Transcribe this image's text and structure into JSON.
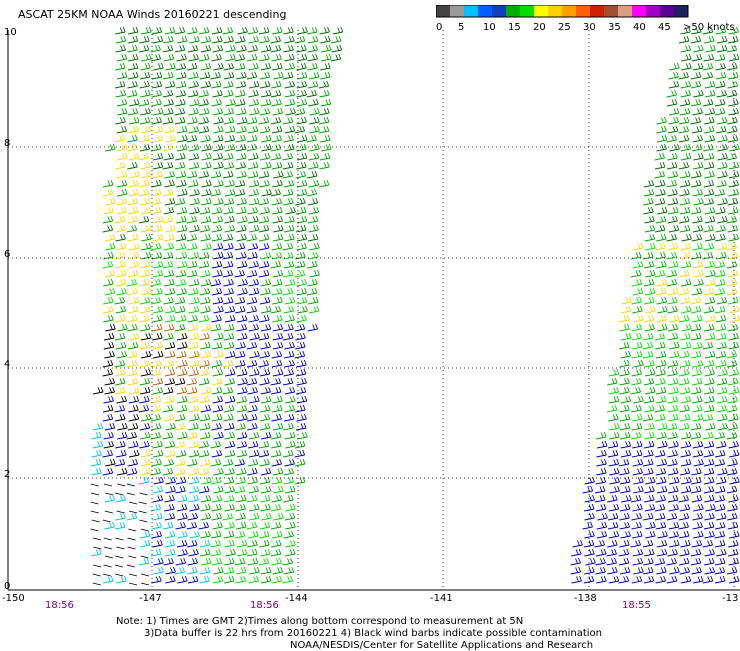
{
  "title": "ASCAT 25KM NOAA Winds 20160221 descending",
  "colorbar": {
    "colors": [
      "#444444",
      "#9a9a9a",
      "#00c0ff",
      "#0060ff",
      "#1040c0",
      "#00b000",
      "#00e000",
      "#ffff00",
      "#ffd000",
      "#ffa000",
      "#ff6000",
      "#d02000",
      "#a05030",
      "#d8a080",
      "#ff00ff",
      "#a000c0",
      "#600090",
      "#202060"
    ],
    "labels": [
      "0",
      "5",
      "10",
      "15",
      "20",
      "25",
      "30",
      "35",
      "40",
      "45",
      ">50 knots"
    ]
  },
  "map": {
    "lat_labels": [
      "10",
      "8",
      "6",
      "4",
      "2",
      "0"
    ],
    "lon_labels": [
      "-150",
      "-147",
      "-144",
      "-141",
      "-138",
      "-13"
    ],
    "time_labels": [
      "18:56",
      "18:56",
      "18:55"
    ]
  },
  "notes": {
    "line1": "Note: 1) Times are GMT 2)Times along bottom correspond to measurement at 5N",
    "line2": "3)Data buffer is 22 hrs from 20160221 4) Black wind barbs indicate possible contamination",
    "line3": "NOAA/NESDIS/Center for Satellite Applications and Research"
  },
  "wind_colors": {
    "dark_green": "#007000",
    "green": "#00a800",
    "light_green": "#00e000",
    "yellow": "#ffd800",
    "blue": "#0000c0",
    "cyan": "#00c8e8",
    "black": "#000000",
    "orange": "#c06000"
  }
}
